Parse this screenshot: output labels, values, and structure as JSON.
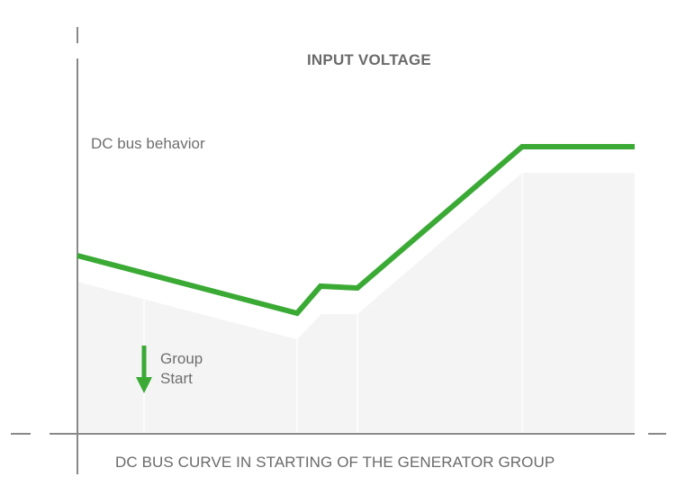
{
  "diagram": {
    "title": "INPUT VOLTAGE",
    "series_label": "DC bus behavior",
    "event_label_line1": "Group",
    "event_label_line2": "Start",
    "caption": "DC BUS CURVE IN STARTING OF THE GENERATOR GROUP",
    "colors": {
      "curve": "#3aaa35",
      "arrow": "#3aaa35",
      "shaded_area": "#f4f4f4",
      "axis": "#888888",
      "text": "#6a6a6a"
    }
  }
}
